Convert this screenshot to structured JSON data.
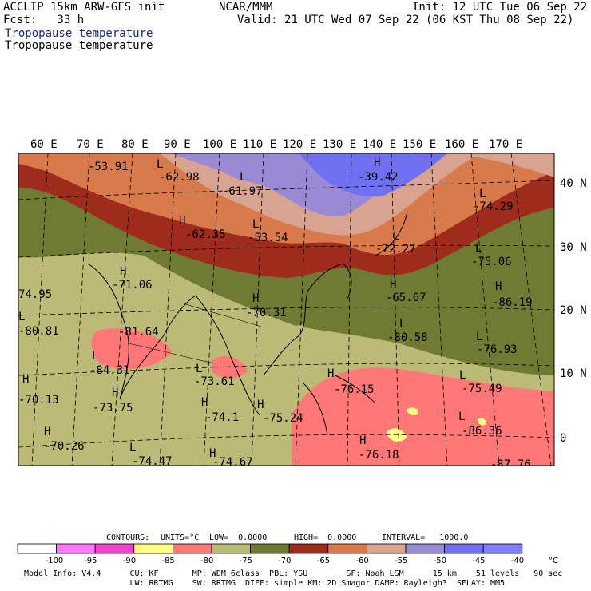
{
  "header": {
    "model_title": "ACCLIP 15km ARW-GFS init",
    "center": "NCAR/MMM",
    "init": "Init: 12 UTC Tue 06 Sep 22",
    "fcst": "Fcst:   33 h",
    "valid": "Valid: 21 UTC Wed 07 Sep 22 (06 KST Thu 08 Sep 22)",
    "field1": "Tropopause temperature",
    "field2": "Tropopause temperature"
  },
  "lon_labels": [
    "60 E",
    "70 E",
    "80 E",
    "90 E",
    "100 E",
    "110 E",
    "120 E",
    "130 E",
    "140 E",
    "150 E",
    "160 E",
    "170 E"
  ],
  "lat_labels": [
    "40 N",
    "30 N",
    "20 N",
    "10 N",
    "0"
  ],
  "markers": [
    {
      "t": "-53.91"
    },
    {
      "t": "L"
    },
    {
      "t": "-62.98"
    },
    {
      "t": "L"
    },
    {
      "t": "-61.97"
    },
    {
      "t": "H"
    },
    {
      "t": "-39.42"
    },
    {
      "t": "L"
    },
    {
      "t": "-74.29"
    },
    {
      "t": "H"
    },
    {
      "t": "-62.35"
    },
    {
      "t": "L"
    },
    {
      "t": "-53.54"
    },
    {
      "t": "L"
    },
    {
      "t": "-72.27"
    },
    {
      "t": "L"
    },
    {
      "t": "-75.06"
    },
    {
      "t": "H"
    },
    {
      "t": "-71.06"
    },
    {
      "t": "H"
    },
    {
      "t": "-65.67"
    },
    {
      "t": "H"
    },
    {
      "t": "-86.19"
    },
    {
      "t": "74.95"
    },
    {
      "t": "H"
    },
    {
      "t": "-70.31"
    },
    {
      "t": "L"
    },
    {
      "t": "-80.81"
    },
    {
      "t": "-81.64"
    },
    {
      "t": "L"
    },
    {
      "t": "-80.58"
    },
    {
      "t": "L"
    },
    {
      "t": "-76.93"
    },
    {
      "t": "L"
    },
    {
      "t": "-84.31"
    },
    {
      "t": "H"
    },
    {
      "t": "L"
    },
    {
      "t": "-73.61"
    },
    {
      "t": "H"
    },
    {
      "t": "-76.15"
    },
    {
      "t": "L"
    },
    {
      "t": "-75.49"
    },
    {
      "t": "H"
    },
    {
      "t": "-70.13"
    },
    {
      "t": "-73.75"
    },
    {
      "t": "H"
    },
    {
      "t": "-74.1"
    },
    {
      "t": "H"
    },
    {
      "t": "-75.24"
    },
    {
      "t": "L"
    },
    {
      "t": "-86.36"
    },
    {
      "t": "H"
    },
    {
      "t": "-70.26"
    },
    {
      "t": "H"
    },
    {
      "t": "-76.18"
    },
    {
      "t": "L"
    },
    {
      "t": "H"
    },
    {
      "t": "-74.47"
    },
    {
      "t": "-74.67"
    },
    {
      "t": "-87.76"
    }
  ],
  "contours_line": {
    "contours": "CONTOURS:",
    "units": "UNITS=°C",
    "low": "LOW=  0.0000",
    "high": "HIGH=  0.0000",
    "interval": "INTERVAL=   1000.0"
  },
  "legend": {
    "labels": [
      "-100",
      "-95",
      "-90",
      "-85",
      "-80",
      "-75",
      "-70",
      "-65",
      "-60",
      "-55",
      "-50",
      "-45",
      "-40"
    ],
    "unit": "°C",
    "colors": [
      "#ffffff",
      "#ff77ff",
      "#ee44cc",
      "#ffff80",
      "#ff7777",
      "#bbbb77",
      "#6f7a33",
      "#9e2b1c",
      "#d87a4c",
      "#d9a392",
      "#9a8ad6",
      "#7070f0",
      "#8080ff"
    ]
  },
  "footer": {
    "line1": "Model Info: V4.4      CU: KF       MP: WDM 6class  PBL: YSU        SF: Noah LSM      15 km    51 levels   90 sec",
    "line2": "                      LW: RRTMG    SW: RRTMG  DIFF: simple KM: 2D Smagor DAMP: Rayleigh3  SFLAY: MM5"
  }
}
